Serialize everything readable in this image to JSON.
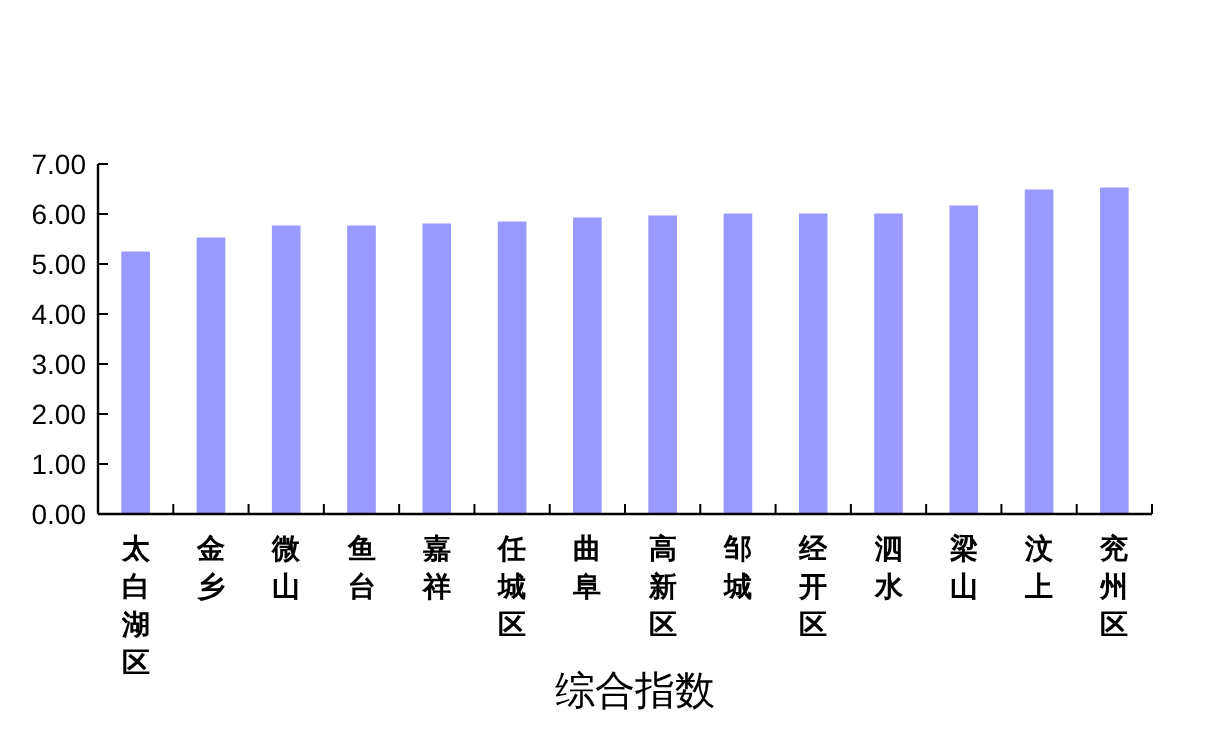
{
  "chart_data": {
    "type": "bar",
    "xlabel": "综合指数",
    "categories": [
      "太白湖区",
      "金乡",
      "微山",
      "鱼台",
      "嘉祥",
      "任城区",
      "曲阜",
      "高新区",
      "邹城",
      "经开区",
      "泗水",
      "梁山",
      "汶上",
      "兖州区"
    ],
    "values": [
      5.25,
      5.53,
      5.77,
      5.77,
      5.81,
      5.85,
      5.93,
      5.97,
      6.01,
      6.01,
      6.01,
      6.17,
      6.49,
      6.53
    ],
    "color": "#9999ff",
    "ylim": [
      0,
      7
    ],
    "yticks": [
      {
        "value": 0,
        "label": "0.00"
      },
      {
        "value": 1,
        "label": "1.00"
      },
      {
        "value": 2,
        "label": "2.00"
      },
      {
        "value": 3,
        "label": "3.00"
      },
      {
        "value": 4,
        "label": "4.00"
      },
      {
        "value": 5,
        "label": "5.00"
      },
      {
        "value": 6,
        "label": "6.00"
      },
      {
        "value": 7,
        "label": "7.00"
      }
    ],
    "grid": false
  }
}
